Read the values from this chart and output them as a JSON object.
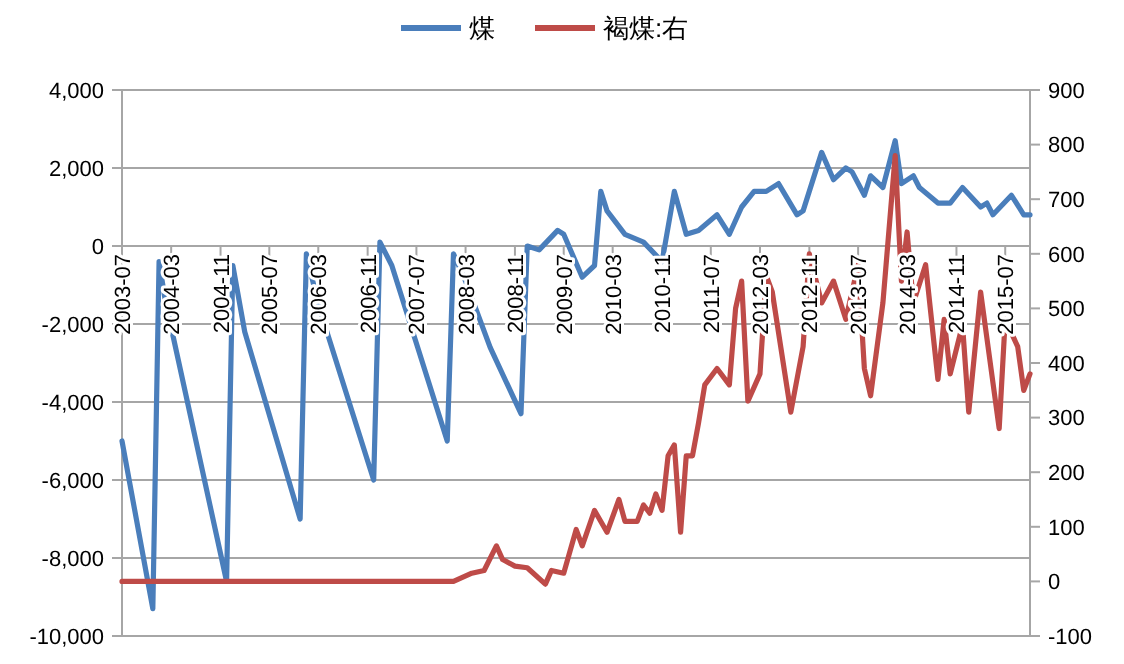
{
  "chart_data": {
    "type": "line",
    "legend": "top",
    "grid": "y",
    "line_style": "solid",
    "marker": "none",
    "xlim": [
      "2003-07",
      "2015-11"
    ],
    "xticks": [
      "2003-07",
      "2004-03",
      "2004-11",
      "2005-07",
      "2006-03",
      "2006-11",
      "2007-07",
      "2008-03",
      "2008-11",
      "2009-07",
      "2010-03",
      "2010-11",
      "2011-07",
      "2012-03",
      "2012-11",
      "2013-07",
      "2014-03",
      "2014-11",
      "2015-07"
    ],
    "ylim": [
      -10000,
      4000
    ],
    "yticks": [
      {
        "value": -10000,
        "label": "-10,000"
      },
      {
        "value": -8000,
        "label": "-8,000"
      },
      {
        "value": -6000,
        "label": "-6,000"
      },
      {
        "value": -4000,
        "label": "-4,000"
      },
      {
        "value": -2000,
        "label": "-2,000"
      },
      0,
      {
        "value": 2000,
        "label": "2,000"
      },
      {
        "value": 4000,
        "label": "4,000"
      }
    ],
    "y2lim": [
      -100,
      900
    ],
    "y2ticks": [
      -100,
      0,
      100,
      200,
      300,
      400,
      500,
      600,
      700,
      800,
      900
    ],
    "series": [
      {
        "name": "煤",
        "color": "#4a7ebb",
        "x": [
          "2003-07",
          "2003-12",
          "2004-01",
          "2004-02",
          "2004-12",
          "2005-01",
          "2005-03",
          "2005-12",
          "2006-01",
          "2006-03",
          "2006-12",
          "2007-01",
          "2007-03",
          "2007-12",
          "2008-01",
          "2008-03",
          "2008-07",
          "2008-12",
          "2009-01",
          "2009-03",
          "2009-06",
          "2009-07",
          "2009-10",
          "2009-12",
          "2010-01",
          "2010-02",
          "2010-05",
          "2010-08",
          "2010-11",
          "2011-01",
          "2011-03",
          "2011-05",
          "2011-08",
          "2011-10",
          "2011-12",
          "2012-02",
          "2012-04",
          "2012-06",
          "2012-09",
          "2012-10",
          "2013-01",
          "2013-03",
          "2013-05",
          "2013-06",
          "2013-08",
          "2013-09",
          "2013-11",
          "2014-01",
          "2014-02",
          "2014-04",
          "2014-05",
          "2014-08",
          "2014-10",
          "2014-12",
          "2015-03",
          "2015-04",
          "2015-05",
          "2015-08",
          "2015-10",
          "2015-11"
        ],
        "values": [
          -5000,
          -9300,
          -400,
          -1400,
          -8600,
          -500,
          -2200,
          -7000,
          -200,
          -1500,
          -6000,
          100,
          -500,
          -5000,
          -200,
          -900,
          -2600,
          -4300,
          0,
          -100,
          400,
          300,
          -800,
          -500,
          1400,
          900,
          300,
          100,
          -400,
          1400,
          300,
          400,
          800,
          300,
          1000,
          1400,
          1400,
          1600,
          800,
          900,
          2400,
          1700,
          2000,
          1900,
          1300,
          1800,
          1500,
          2700,
          1600,
          1800,
          1500,
          1100,
          1100,
          1500,
          1000,
          1100,
          800,
          1300,
          800,
          800
        ]
      },
      {
        "name": "褐煤:右",
        "color": "#be4b48",
        "axis": "y2",
        "x": [
          "2003-07",
          "2005-07",
          "2007-07",
          "2008-01",
          "2008-04",
          "2008-06",
          "2008-08",
          "2008-09",
          "2008-11",
          "2009-01",
          "2009-04",
          "2009-05",
          "2009-07",
          "2009-09",
          "2009-10",
          "2009-12",
          "2010-02",
          "2010-04",
          "2010-05",
          "2010-07",
          "2010-08",
          "2010-09",
          "2010-10",
          "2010-11",
          "2010-12",
          "2011-01",
          "2011-02",
          "2011-03",
          "2011-04",
          "2011-05",
          "2011-06",
          "2011-08",
          "2011-10",
          "2011-11",
          "2011-12",
          "2012-01",
          "2012-03",
          "2012-04",
          "2012-05",
          "2012-08",
          "2012-10",
          "2012-11",
          "2013-01",
          "2013-03",
          "2013-05",
          "2013-07",
          "2013-08",
          "2013-09",
          "2013-11",
          "2014-01",
          "2014-02",
          "2014-03",
          "2014-04",
          "2014-06",
          "2014-08",
          "2014-09",
          "2014-10",
          "2014-12",
          "2015-01",
          "2015-03",
          "2015-06",
          "2015-07",
          "2015-09",
          "2015-10",
          "2015-11"
        ],
        "values": [
          0,
          0,
          0,
          0,
          15,
          20,
          65,
          40,
          28,
          25,
          -5,
          20,
          15,
          95,
          65,
          130,
          90,
          150,
          110,
          110,
          140,
          125,
          160,
          130,
          230,
          250,
          90,
          230,
          230,
          290,
          360,
          390,
          360,
          500,
          550,
          330,
          380,
          560,
          530,
          310,
          430,
          600,
          510,
          550,
          480,
          580,
          390,
          340,
          510,
          780,
          550,
          640,
          510,
          580,
          370,
          480,
          380,
          470,
          310,
          530,
          280,
          480,
          430,
          350,
          380
        ]
      }
    ]
  }
}
